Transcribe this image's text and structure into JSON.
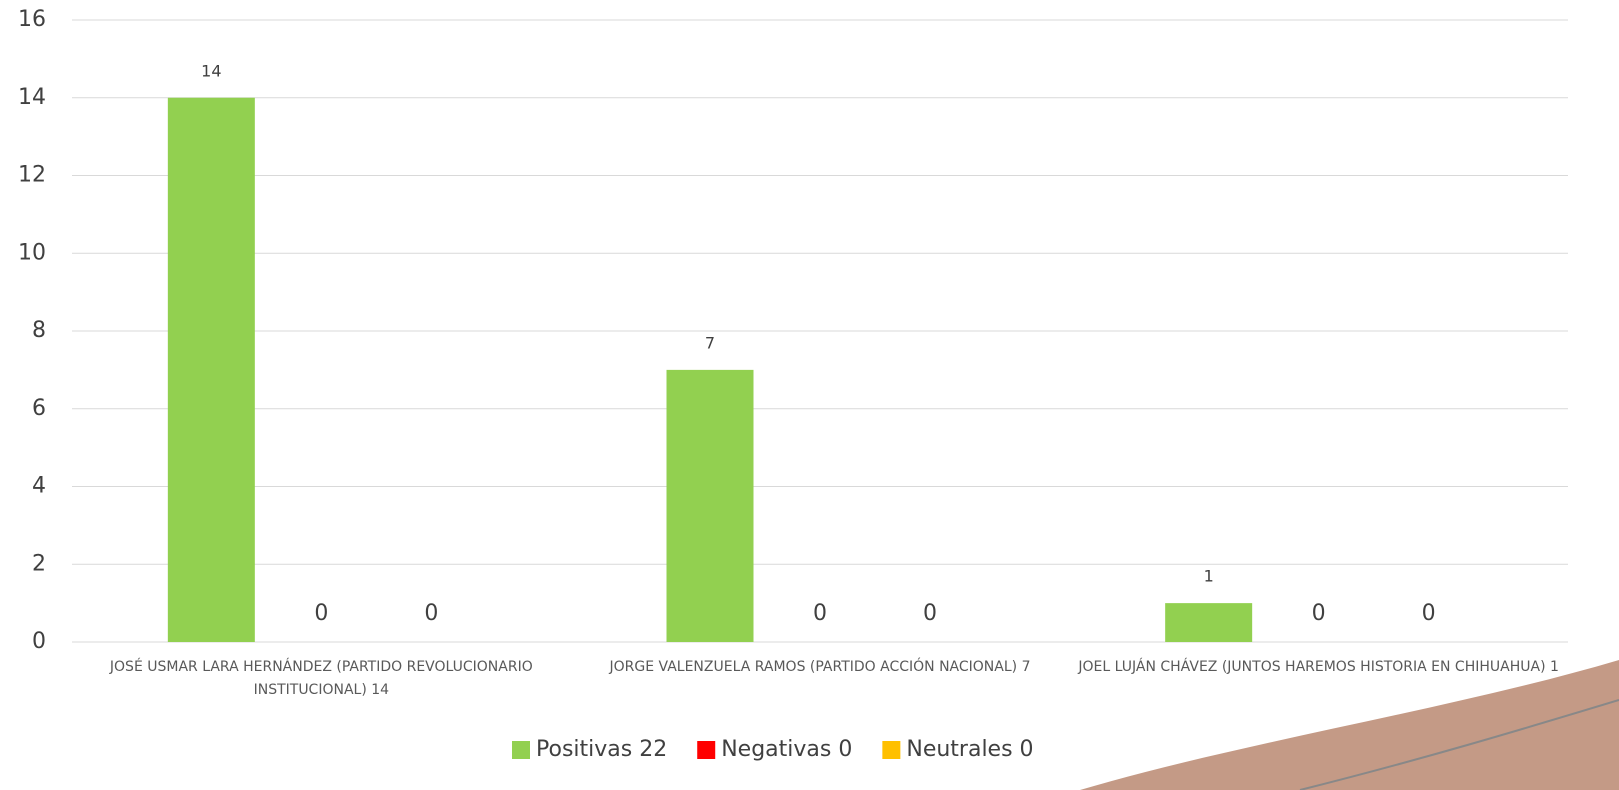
{
  "chart_data": {
    "type": "bar",
    "categories": [
      "JOSÉ USMAR LARA HERNÁNDEZ (PARTIDO REVOLUCIONARIO INSTITUCIONAL) 14",
      "JORGE VALENZUELA RAMOS (PARTIDO ACCIÓN NACIONAL) 7",
      "JOEL LUJÁN CHÁVEZ (JUNTOS HAREMOS HISTORIA EN CHIHUAHUA) 1"
    ],
    "series": [
      {
        "name": "Positivas 22",
        "color": "#92d050",
        "values": [
          14,
          7,
          1
        ]
      },
      {
        "name": "Negativas 0",
        "color": "#ff0000",
        "values": [
          0,
          0,
          0
        ]
      },
      {
        "name": "Neutrales 0",
        "color": "#ffc000",
        "values": [
          0,
          0,
          0
        ]
      }
    ],
    "ylim": [
      0,
      16
    ],
    "yticks": [
      0,
      2,
      4,
      6,
      8,
      10,
      12,
      14,
      16
    ],
    "grid": true,
    "legend": "bottom"
  }
}
